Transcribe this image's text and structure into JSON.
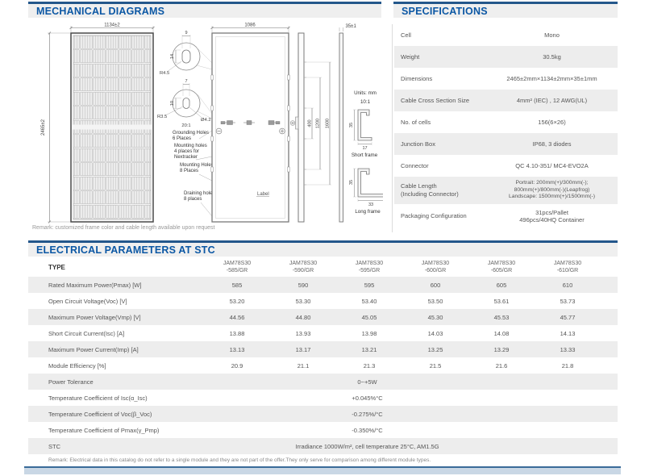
{
  "theme": {
    "accent_text": "#0b57a4",
    "header_line": "#24578b",
    "header_bar_bg": "#efefef",
    "row_stripe": "#ededed",
    "footer_bar": "#c9d7e5"
  },
  "mechanical": {
    "title": "MECHANICAL DIAGRAMS",
    "remark": "Remark: customized frame color and cable length available upon request",
    "front_view": {
      "width": "1134±2",
      "height": "2465±2"
    },
    "back_view": {
      "width": "1086",
      "label_text": "Label",
      "minus": "−",
      "plus": "+"
    },
    "side_view": {
      "dim1": "400",
      "dim2": "1200",
      "dim3": "1600",
      "thickness": "35±1"
    },
    "detail_top": {
      "w": "9",
      "h": "14",
      "r": "R4.5"
    },
    "detail_bottom": {
      "w": "7",
      "h": "10",
      "r": "R3.5",
      "dia": "Ø4.2",
      "scale": "20:1"
    },
    "notes": {
      "units": "Units: mm",
      "scale": "10:1"
    },
    "callouts": {
      "grounding": "Grounding Holes\n6 Places",
      "mounting4": "Mounting holes\n4 places for\nNextracker",
      "mounting8": "Mounting Holes\n8 Places",
      "draining": "Draining holes\n8 places"
    },
    "short_frame": {
      "h": "35",
      "w": "17",
      "label": "Short frame"
    },
    "long_frame": {
      "h": "35",
      "w": "33",
      "label": "Long frame"
    }
  },
  "specifications": {
    "title": "SPECIFICATIONS",
    "rows": [
      {
        "label": "Cell",
        "value": "Mono"
      },
      {
        "label": "Weight",
        "value": "30.5kg"
      },
      {
        "label": "Dimensions",
        "value": "2465±2mm×1134±2mm×35±1mm"
      },
      {
        "label": "Cable Cross Section Size",
        "value": "4mm² (IEC) , 12 AWG(UL)"
      },
      {
        "label": "No. of cells",
        "value": "156(6×26)"
      },
      {
        "label": "Junction Box",
        "value": "IP68, 3 diodes"
      },
      {
        "label": "Connector",
        "value": "QC 4.10-351/ MC4-EVO2A"
      },
      {
        "label": "Cable Length\n(Including Connector)",
        "value": "Portrait: 200mm(+)/300mm(-);\n800mm(+)/800mm(-)(Leapfrog)\nLandscape: 1500mm(+)/1500mm(-)",
        "tall": true,
        "small": true
      },
      {
        "label": "Packaging Configuration",
        "value": "31pcs/Pallet\n496pcs/40HQ Container",
        "med": true
      }
    ]
  },
  "electrical": {
    "title": "ELECTRICAL PARAMETERS AT STC",
    "type_label": "TYPE",
    "types": [
      {
        "series": "JAM78S30",
        "model": "-585/GR"
      },
      {
        "series": "JAM78S30",
        "model": "-590/GR"
      },
      {
        "series": "JAM78S30",
        "model": "-595/GR"
      },
      {
        "series": "JAM78S30",
        "model": "-600/GR"
      },
      {
        "series": "JAM78S30",
        "model": "-605/GR"
      },
      {
        "series": "JAM78S30",
        "model": "-610/GR"
      }
    ],
    "rows": [
      {
        "label": "Rated Maximum Power(Pmax) [W]",
        "values": [
          "585",
          "590",
          "595",
          "600",
          "605",
          "610"
        ]
      },
      {
        "label": "Open Circuit Voltage(Voc) [V]",
        "values": [
          "53.20",
          "53.30",
          "53.40",
          "53.50",
          "53.61",
          "53.73"
        ]
      },
      {
        "label": "Maximum Power Voltage(Vmp) [V]",
        "values": [
          "44.56",
          "44.80",
          "45.05",
          "45.30",
          "45.53",
          "45.77"
        ]
      },
      {
        "label": "Short Circuit Current(Isc) [A]",
        "values": [
          "13.88",
          "13.93",
          "13.98",
          "14.03",
          "14.08",
          "14.13"
        ]
      },
      {
        "label": "Maximum Power Current(Imp) [A]",
        "values": [
          "13.13",
          "13.17",
          "13.21",
          "13.25",
          "13.29",
          "13.33"
        ]
      },
      {
        "label": "Module Efficiency [%]",
        "values": [
          "20.9",
          "21.1",
          "21.3",
          "21.5",
          "21.6",
          "21.8"
        ]
      }
    ],
    "span_rows": [
      {
        "label": "Power Tolerance",
        "value": "0~+5W"
      },
      {
        "label": "Temperature Coefficient of Isc(α_Isc)",
        "value": "+0.045%°C"
      },
      {
        "label": "Temperature Coefficient of Voc(β_Voc)",
        "value": "-0.275%/°C"
      },
      {
        "label": "Temperature Coefficient of Pmax(γ_Pmp)",
        "value": "-0.350%/°C"
      },
      {
        "label": "STC",
        "value": "Irradiance 1000W/m²,  cell temperature 25°C, AM1.5G"
      }
    ],
    "remark": "Remark: Electrical data in this catalog do not refer to a single module and they are not part of the offer.They only serve for comparison among different module types."
  }
}
